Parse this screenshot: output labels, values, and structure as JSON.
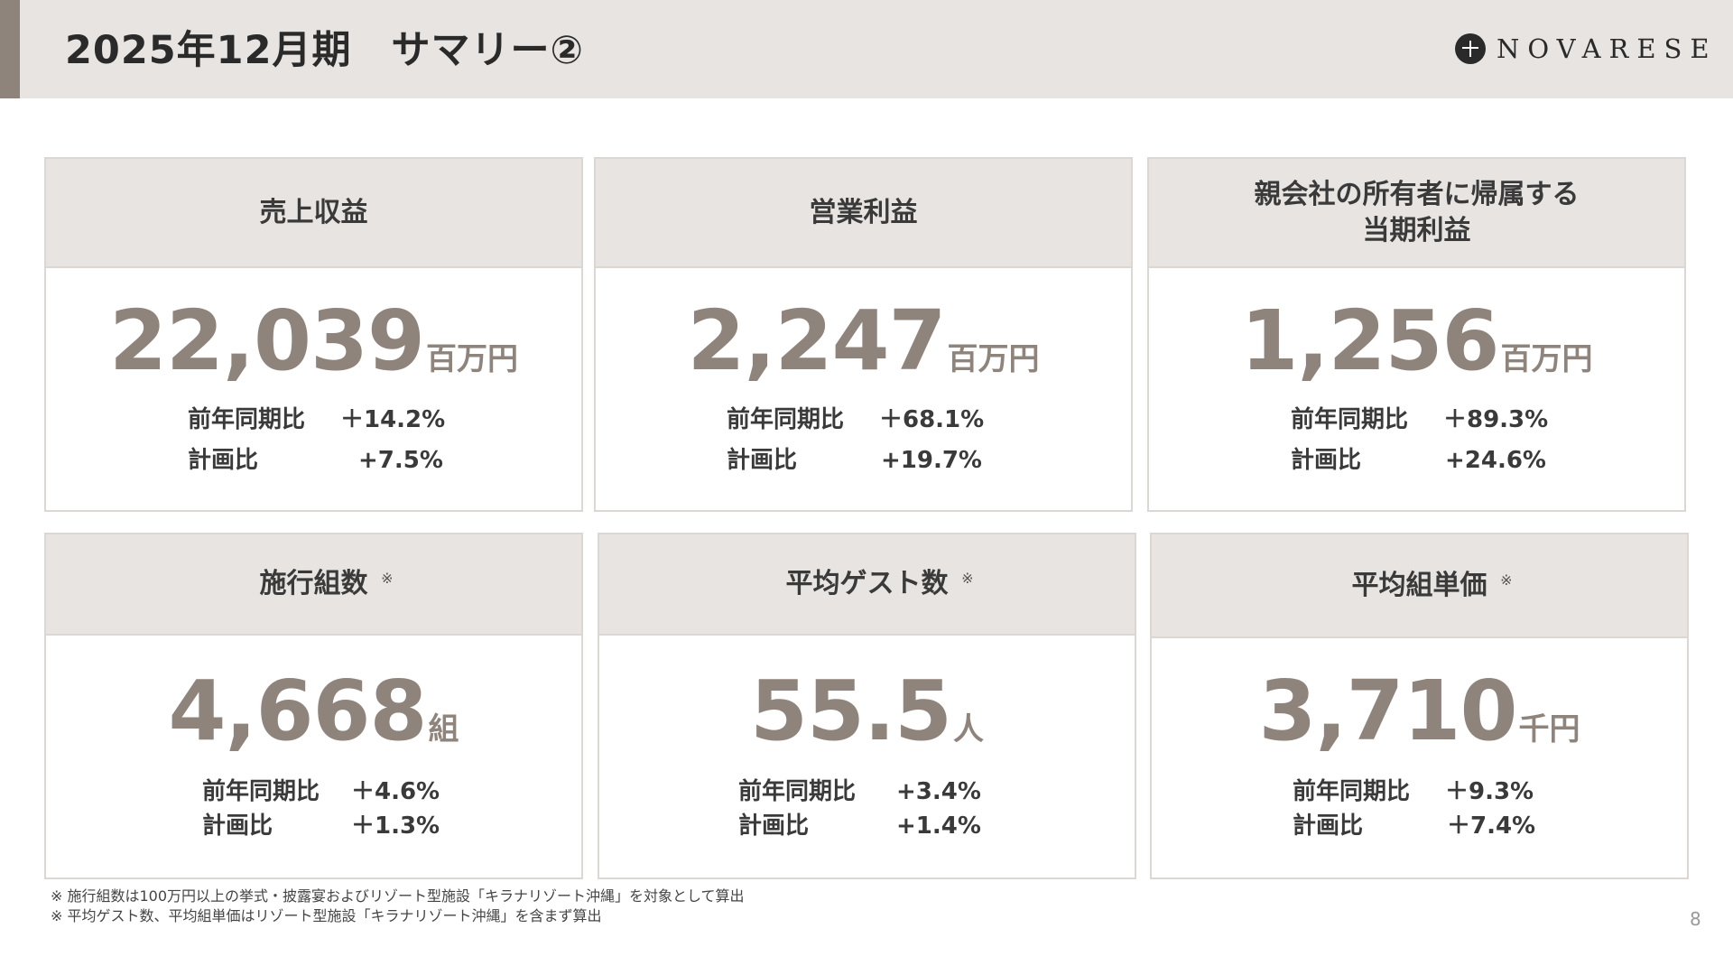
{
  "header": {
    "title": "2025年12月期　サマリー②",
    "logo_text": "NOVARESE"
  },
  "cards": [
    {
      "title": "売上収益",
      "value": "22,039",
      "unit": "百万円",
      "rows": [
        {
          "label": "前年同期比",
          "value": "＋14.2%"
        },
        {
          "label": "計画比",
          "value": "+7.5%"
        }
      ]
    },
    {
      "title": "営業利益",
      "value": "2,247",
      "unit": "百万円",
      "rows": [
        {
          "label": "前年同期比",
          "value": "＋68.1%"
        },
        {
          "label": "計画比",
          "value": "+19.7%"
        }
      ]
    },
    {
      "title_line1": "親会社の所有者に帰属する",
      "title_line2": "当期利益",
      "value": "1,256",
      "unit": "百万円",
      "rows": [
        {
          "label": "前年同期比",
          "value": "＋89.3%"
        },
        {
          "label": "計画比",
          "value": "+24.6%"
        }
      ]
    },
    {
      "title": "施行組数",
      "mark": "※",
      "value": "4,668",
      "unit": "組",
      "rows": [
        {
          "label": "前年同期比",
          "value": "＋4.6%"
        },
        {
          "label": "計画比",
          "value": "＋1.3%"
        }
      ]
    },
    {
      "title": "平均ゲスト数",
      "mark": "※",
      "value": "55.5",
      "unit": "人",
      "rows": [
        {
          "label": "前年同期比",
          "value": "+3.4%"
        },
        {
          "label": "計画比",
          "value": "+1.4%"
        }
      ]
    },
    {
      "title": "平均組単価",
      "mark": "※",
      "value": "3,710",
      "unit": "千円",
      "rows": [
        {
          "label": "前年同期比",
          "value": "＋9.3%"
        },
        {
          "label": "計画比",
          "value": "＋7.4%"
        }
      ]
    }
  ],
  "footnotes": [
    "※ 施行組数は100万円以上の挙式・披露宴およびリゾート型施設「キラナリゾート沖縄」を対象として算出",
    "※ 平均ゲスト数、平均組単価はリゾート型施設「キラナリゾート沖縄」を含まず算出"
  ],
  "page_number": "8",
  "colors": {
    "accent": "#8f847c",
    "header_bg": "#e8e4e1",
    "text": "#3a3a3a"
  }
}
